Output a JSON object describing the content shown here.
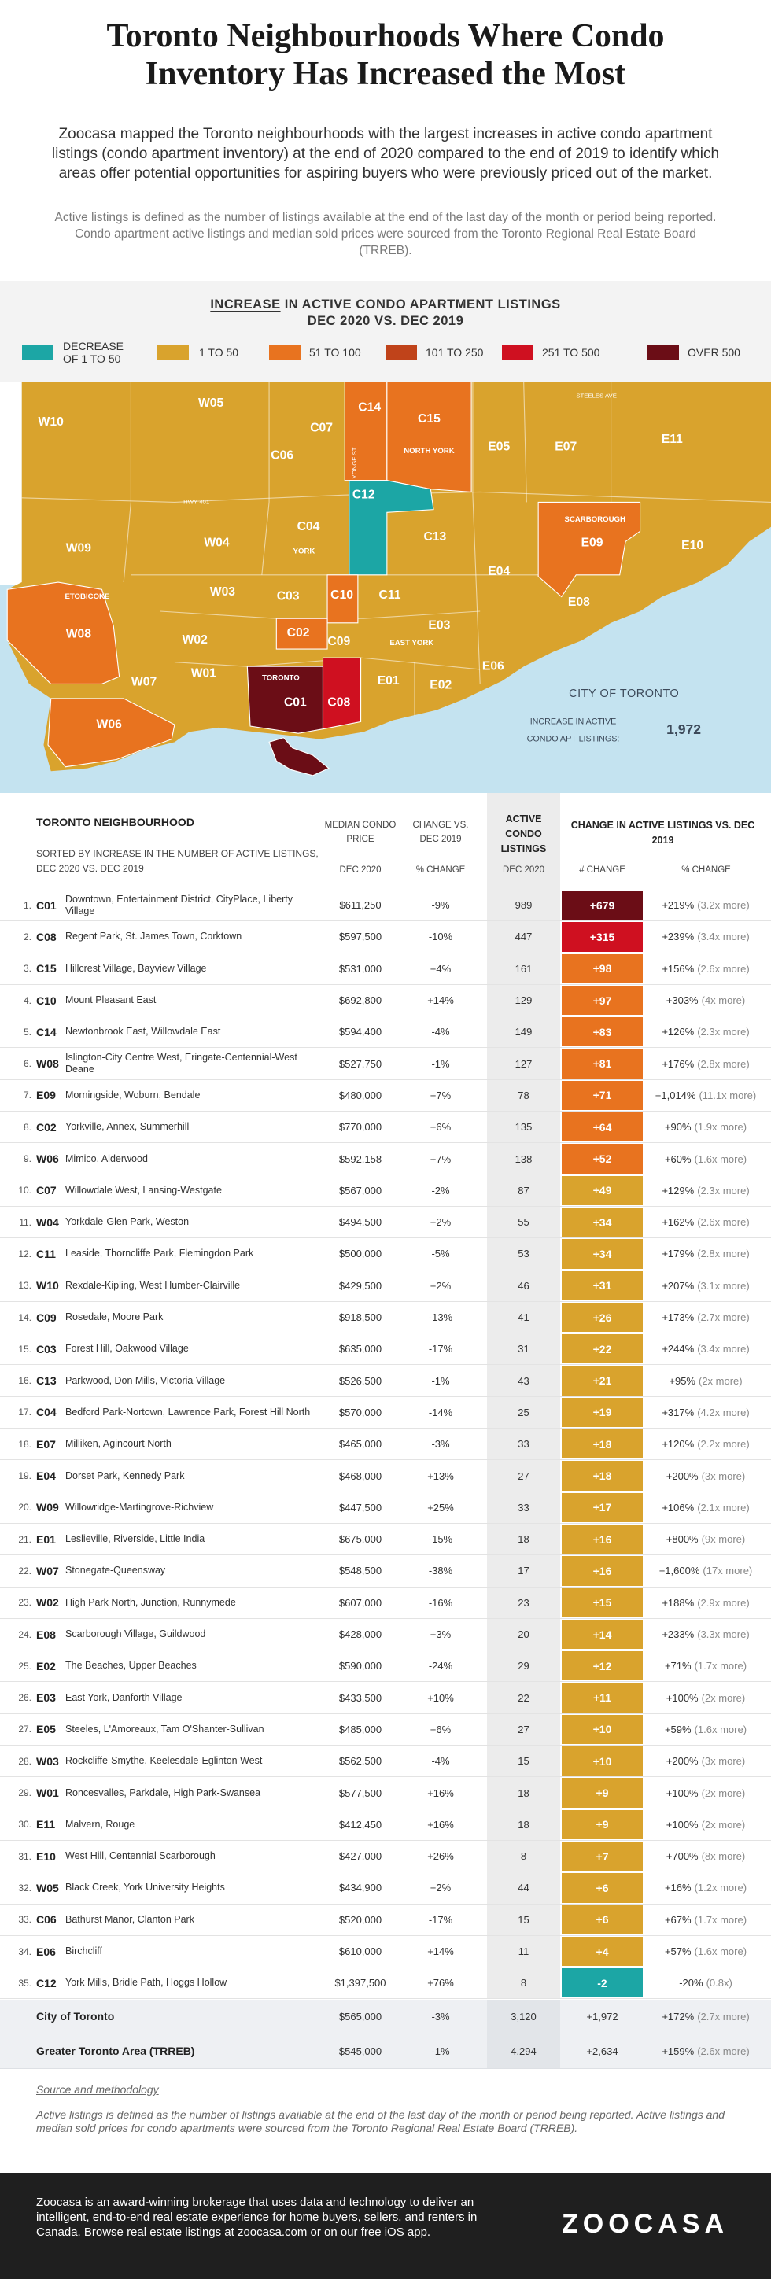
{
  "header": {
    "title": "Toronto Neighbourhoods Where Condo Inventory Has Increased the Most",
    "intro": "Zoocasa mapped the Toronto neighbourhoods with the largest increases in active condo apartment listings (condo apartment inventory) at the end of 2020 compared to the end of 2019 to identify which areas offer potential opportunities for aspiring buyers who were previously priced out of the market.",
    "note": "Active listings is defined as the number of listings available at the end of the last day of the month or period being reported. Condo apartment active listings and median sold prices were sourced from the Toronto Regional Real Estate Board (TRREB)."
  },
  "legend": {
    "title_emphasis": "INCREASE",
    "title": "IN ACTIVE CONDO APARTMENT LISTINGS",
    "subtitle": "DEC 2020 VS. DEC 2019",
    "items": [
      {
        "label": "DECREASE OF 1 TO 50",
        "color": "#1ca6a5"
      },
      {
        "label": "1 TO 50",
        "color": "#d9a32d"
      },
      {
        "label": "51 TO 100",
        "color": "#e8731f"
      },
      {
        "label": "101 TO 250",
        "color": "#c0431a"
      },
      {
        "label": "251 TO 500",
        "color": "#cf1020"
      },
      {
        "label": "OVER 500",
        "color": "#6b0d16"
      }
    ]
  },
  "map": {
    "regions": [
      "W10",
      "W05",
      "C07",
      "C06",
      "C14",
      "C15",
      "E05",
      "E07",
      "E11",
      "C12",
      "C13",
      "W09",
      "W04",
      "C04",
      "E04",
      "E09",
      "E10",
      "W03",
      "C03",
      "C10",
      "C11",
      "E08",
      "W08",
      "C02",
      "C09",
      "E03",
      "W02",
      "E06",
      "W01",
      "W07",
      "C01",
      "C08",
      "E01",
      "E02",
      "W06"
    ],
    "areas": [
      "NORTH YORK",
      "YORK",
      "SCARBOROUGH",
      "ETOBICOKE",
      "EAST YORK",
      "TORONTO"
    ],
    "streets": [
      "STEELES AVE",
      "HWY 401",
      "YONGE ST"
    ],
    "callout": {
      "title": "CITY OF TORONTO",
      "label_lines": [
        "INCREASE IN ACTIVE",
        "CONDO APT LISTINGS:"
      ],
      "value": "1,972"
    }
  },
  "table": {
    "headers": {
      "neighbourhood": "TORONTO NEIGHBOURHOOD",
      "sort_note": "SORTED BY INCREASE IN THE NUMBER OF ACTIVE LISTINGS, DEC 2020 VS. DEC 2019",
      "price": "MEDIAN CONDO PRICE",
      "price_sub": "DEC 2020",
      "change": "CHANGE VS. DEC 2019",
      "change_sub": "% CHANGE",
      "listings": "ACTIVE CONDO LISTINGS",
      "listings_sub": "DEC 2020",
      "delta": "CHANGE IN ACTIVE LISTINGS VS. DEC 2019",
      "delta_sub": "# CHANGE",
      "pct_sub": "% CHANGE"
    },
    "rows": [
      {
        "rank": "1.",
        "code": "C01",
        "name": "Downtown, Entertainment District, CityPlace, Liberty Village",
        "price": "$611,250",
        "change": "-9%",
        "listings": "989",
        "delta": "+679",
        "pct": "+219%",
        "mult": "(3.2x more)",
        "color": "#6b0d16"
      },
      {
        "rank": "2.",
        "code": "C08",
        "name": "Regent Park, St. James Town, Corktown",
        "price": "$597,500",
        "change": "-10%",
        "listings": "447",
        "delta": "+315",
        "pct": "+239%",
        "mult": "(3.4x more)",
        "color": "#cf1020"
      },
      {
        "rank": "3.",
        "code": "C15",
        "name": "Hillcrest Village, Bayview Village",
        "price": "$531,000",
        "change": "+4%",
        "listings": "161",
        "delta": "+98",
        "pct": "+156%",
        "mult": "(2.6x more)",
        "color": "#e8731f"
      },
      {
        "rank": "4.",
        "code": "C10",
        "name": "Mount Pleasant East",
        "price": "$692,800",
        "change": "+14%",
        "listings": "129",
        "delta": "+97",
        "pct": "+303%",
        "mult": "(4x more)",
        "color": "#e8731f"
      },
      {
        "rank": "5.",
        "code": "C14",
        "name": "Newtonbrook East, Willowdale East",
        "price": "$594,400",
        "change": "-4%",
        "listings": "149",
        "delta": "+83",
        "pct": "+126%",
        "mult": "(2.3x more)",
        "color": "#e8731f"
      },
      {
        "rank": "6.",
        "code": "W08",
        "name": "Islington-City Centre West, Eringate-Centennial-West Deane",
        "price": "$527,750",
        "change": "-1%",
        "listings": "127",
        "delta": "+81",
        "pct": "+176%",
        "mult": "(2.8x more)",
        "color": "#e8731f"
      },
      {
        "rank": "7.",
        "code": "E09",
        "name": "Morningside, Woburn, Bendale",
        "price": "$480,000",
        "change": "+7%",
        "listings": "78",
        "delta": "+71",
        "pct": "+1,014%",
        "mult": "(11.1x more)",
        "color": "#e8731f"
      },
      {
        "rank": "8.",
        "code": "C02",
        "name": "Yorkville, Annex, Summerhill",
        "price": "$770,000",
        "change": "+6%",
        "listings": "135",
        "delta": "+64",
        "pct": "+90%",
        "mult": "(1.9x more)",
        "color": "#e8731f"
      },
      {
        "rank": "9.",
        "code": "W06",
        "name": "Mimico, Alderwood",
        "price": "$592,158",
        "change": "+7%",
        "listings": "138",
        "delta": "+52",
        "pct": "+60%",
        "mult": "(1.6x more)",
        "color": "#e8731f"
      },
      {
        "rank": "10.",
        "code": "C07",
        "name": "Willowdale West, Lansing-Westgate",
        "price": "$567,000",
        "change": "-2%",
        "listings": "87",
        "delta": "+49",
        "pct": "+129%",
        "mult": "(2.3x more)",
        "color": "#d9a32d"
      },
      {
        "rank": "11.",
        "code": "W04",
        "name": "Yorkdale-Glen Park, Weston",
        "price": "$494,500",
        "change": "+2%",
        "listings": "55",
        "delta": "+34",
        "pct": "+162%",
        "mult": "(2.6x more)",
        "color": "#d9a32d"
      },
      {
        "rank": "12.",
        "code": "C11",
        "name": "Leaside, Thorncliffe Park, Flemingdon Park",
        "price": "$500,000",
        "change": "-5%",
        "listings": "53",
        "delta": "+34",
        "pct": "+179%",
        "mult": "(2.8x more)",
        "color": "#d9a32d"
      },
      {
        "rank": "13.",
        "code": "W10",
        "name": "Rexdale-Kipling, West Humber-Clairville",
        "price": "$429,500",
        "change": "+2%",
        "listings": "46",
        "delta": "+31",
        "pct": "+207%",
        "mult": "(3.1x more)",
        "color": "#d9a32d"
      },
      {
        "rank": "14.",
        "code": "C09",
        "name": "Rosedale, Moore Park",
        "price": "$918,500",
        "change": "-13%",
        "listings": "41",
        "delta": "+26",
        "pct": "+173%",
        "mult": "(2.7x more)",
        "color": "#d9a32d"
      },
      {
        "rank": "15.",
        "code": "C03",
        "name": "Forest Hill, Oakwood Village",
        "price": "$635,000",
        "change": "-17%",
        "listings": "31",
        "delta": "+22",
        "pct": "+244%",
        "mult": "(3.4x more)",
        "color": "#d9a32d"
      },
      {
        "rank": "16.",
        "code": "C13",
        "name": "Parkwood, Don Mills, Victoria Village",
        "price": "$526,500",
        "change": "-1%",
        "listings": "43",
        "delta": "+21",
        "pct": "+95%",
        "mult": "(2x more)",
        "color": "#d9a32d"
      },
      {
        "rank": "17.",
        "code": "C04",
        "name": "Bedford Park-Nortown, Lawrence Park, Forest Hill North",
        "price": "$570,000",
        "change": "-14%",
        "listings": "25",
        "delta": "+19",
        "pct": "+317%",
        "mult": "(4.2x more)",
        "color": "#d9a32d"
      },
      {
        "rank": "18.",
        "code": "E07",
        "name": "Milliken, Agincourt North",
        "price": "$465,000",
        "change": "-3%",
        "listings": "33",
        "delta": "+18",
        "pct": "+120%",
        "mult": "(2.2x more)",
        "color": "#d9a32d"
      },
      {
        "rank": "19.",
        "code": "E04",
        "name": "Dorset Park, Kennedy Park",
        "price": "$468,000",
        "change": "+13%",
        "listings": "27",
        "delta": "+18",
        "pct": "+200%",
        "mult": "(3x more)",
        "color": "#d9a32d"
      },
      {
        "rank": "20.",
        "code": "W09",
        "name": "Willowridge-Martingrove-Richview",
        "price": "$447,500",
        "change": "+25%",
        "listings": "33",
        "delta": "+17",
        "pct": "+106%",
        "mult": "(2.1x more)",
        "color": "#d9a32d"
      },
      {
        "rank": "21.",
        "code": "E01",
        "name": "Leslieville, Riverside, Little India",
        "price": "$675,000",
        "change": "-15%",
        "listings": "18",
        "delta": "+16",
        "pct": "+800%",
        "mult": "(9x more)",
        "color": "#d9a32d"
      },
      {
        "rank": "22.",
        "code": "W07",
        "name": "Stonegate-Queensway",
        "price": "$548,500",
        "change": "-38%",
        "listings": "17",
        "delta": "+16",
        "pct": "+1,600%",
        "mult": "(17x more)",
        "color": "#d9a32d"
      },
      {
        "rank": "23.",
        "code": "W02",
        "name": "High Park North, Junction, Runnymede",
        "price": "$607,000",
        "change": "-16%",
        "listings": "23",
        "delta": "+15",
        "pct": "+188%",
        "mult": "(2.9x more)",
        "color": "#d9a32d"
      },
      {
        "rank": "24.",
        "code": "E08",
        "name": "Scarborough Village, Guildwood",
        "price": "$428,000",
        "change": "+3%",
        "listings": "20",
        "delta": "+14",
        "pct": "+233%",
        "mult": "(3.3x more)",
        "color": "#d9a32d"
      },
      {
        "rank": "25.",
        "code": "E02",
        "name": "The Beaches, Upper Beaches",
        "price": "$590,000",
        "change": "-24%",
        "listings": "29",
        "delta": "+12",
        "pct": "+71%",
        "mult": "(1.7x more)",
        "color": "#d9a32d"
      },
      {
        "rank": "26.",
        "code": "E03",
        "name": "East York, Danforth Village",
        "price": "$433,500",
        "change": "+10%",
        "listings": "22",
        "delta": "+11",
        "pct": "+100%",
        "mult": "(2x more)",
        "color": "#d9a32d"
      },
      {
        "rank": "27.",
        "code": "E05",
        "name": "Steeles, L'Amoreaux, Tam O'Shanter-Sullivan",
        "price": "$485,000",
        "change": "+6%",
        "listings": "27",
        "delta": "+10",
        "pct": "+59%",
        "mult": "(1.6x more)",
        "color": "#d9a32d"
      },
      {
        "rank": "28.",
        "code": "W03",
        "name": "Rockcliffe-Smythe, Keelesdale-Eglinton West",
        "price": "$562,500",
        "change": "-4%",
        "listings": "15",
        "delta": "+10",
        "pct": "+200%",
        "mult": "(3x more)",
        "color": "#d9a32d"
      },
      {
        "rank": "29.",
        "code": "W01",
        "name": "Roncesvalles, Parkdale, High Park-Swansea",
        "price": "$577,500",
        "change": "+16%",
        "listings": "18",
        "delta": "+9",
        "pct": "+100%",
        "mult": "(2x more)",
        "color": "#d9a32d"
      },
      {
        "rank": "30.",
        "code": "E11",
        "name": "Malvern, Rouge",
        "price": "$412,450",
        "change": "+16%",
        "listings": "18",
        "delta": "+9",
        "pct": "+100%",
        "mult": "(2x more)",
        "color": "#d9a32d"
      },
      {
        "rank": "31.",
        "code": "E10",
        "name": "West Hill, Centennial Scarborough",
        "price": "$427,000",
        "change": "+26%",
        "listings": "8",
        "delta": "+7",
        "pct": "+700%",
        "mult": "(8x more)",
        "color": "#d9a32d"
      },
      {
        "rank": "32.",
        "code": "W05",
        "name": "Black Creek, York University Heights",
        "price": "$434,900",
        "change": "+2%",
        "listings": "44",
        "delta": "+6",
        "pct": "+16%",
        "mult": "(1.2x more)",
        "color": "#d9a32d"
      },
      {
        "rank": "33.",
        "code": "C06",
        "name": "Bathurst Manor, Clanton Park",
        "price": "$520,000",
        "change": "-17%",
        "listings": "15",
        "delta": "+6",
        "pct": "+67%",
        "mult": "(1.7x more)",
        "color": "#d9a32d"
      },
      {
        "rank": "34.",
        "code": "E06",
        "name": "Birchcliff",
        "price": "$610,000",
        "change": "+14%",
        "listings": "11",
        "delta": "+4",
        "pct": "+57%",
        "mult": "(1.6x more)",
        "color": "#d9a32d"
      },
      {
        "rank": "35.",
        "code": "C12",
        "name": "York Mills, Bridle Path, Hoggs Hollow",
        "price": "$1,397,500",
        "change": "+76%",
        "listings": "8",
        "delta": "-2",
        "pct": "-20%",
        "mult": "(0.8x)",
        "color": "#1ca6a5"
      }
    ],
    "totals": [
      {
        "name": "City of Toronto",
        "price": "$565,000",
        "change": "-3%",
        "listings": "3,120",
        "delta": "+1,972",
        "pct": "+172%",
        "mult": "(2.7x more)"
      },
      {
        "name": "Greater Toronto Area (TRREB)",
        "price": "$545,000",
        "change": "-1%",
        "listings": "4,294",
        "delta": "+2,634",
        "pct": "+159%",
        "mult": "(2.6x more)"
      }
    ]
  },
  "source": {
    "title": "Source and methodology",
    "text": "Active listings is defined as the number of listings available at the end of the last day of the month or period being reported. Active listings and median sold prices for condo apartments were sourced from the Toronto Regional Real Estate Board (TRREB)."
  },
  "footer": {
    "text": "Zoocasa is an award-winning brokerage that uses data and technology to deliver an intelligent, end-to-end real estate experience for home buyers, sellers, and renters in Canada. Browse real estate listings at zoocasa.com or on our free iOS app.",
    "logo": "ZOOCASA"
  }
}
